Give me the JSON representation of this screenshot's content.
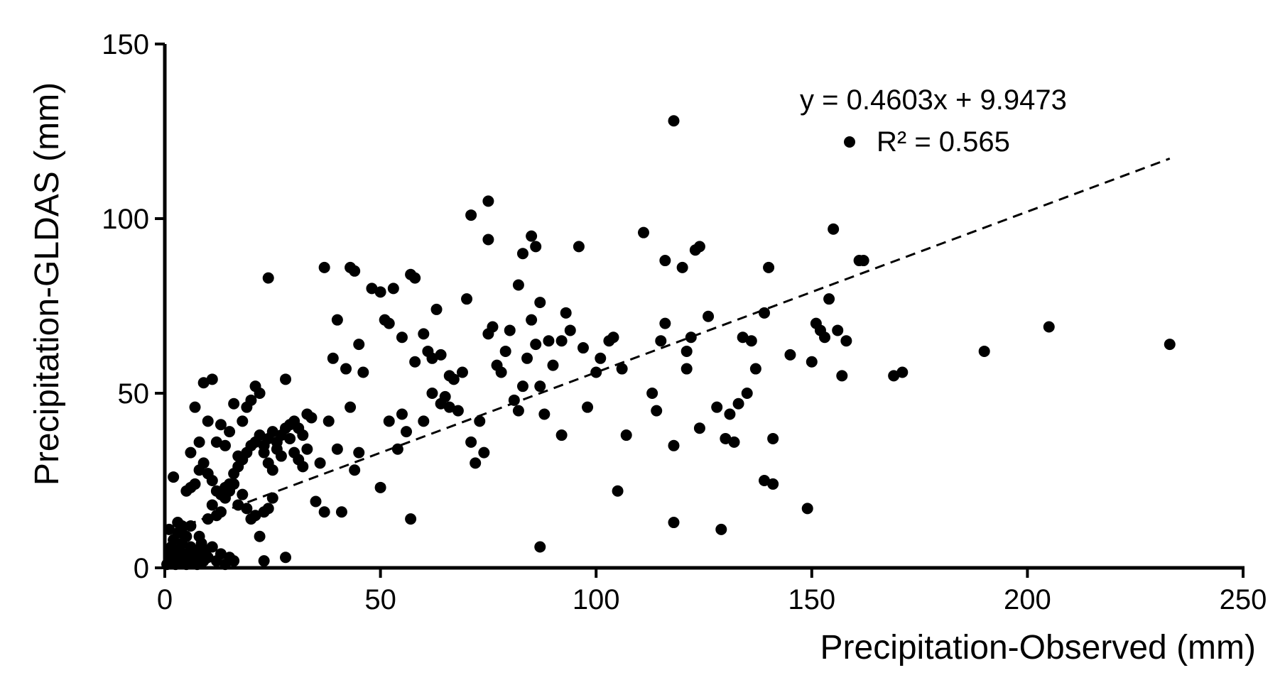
{
  "chart_data": {
    "type": "scatter",
    "xlabel": "Precipitation-Observed (mm)",
    "ylabel": "Precipitation-GLDAS (mm)",
    "xlim": [
      0,
      250
    ],
    "ylim": [
      0,
      150
    ],
    "x_ticks": [
      "0",
      "50",
      "100",
      "150",
      "200",
      "250"
    ],
    "y_ticks": [
      "0",
      "50",
      "100",
      "150"
    ],
    "grid": false,
    "legend": "none",
    "colors": {
      "points": "#000000",
      "axes": "#000000",
      "trendline": "#000000"
    },
    "trendline": {
      "slope": 0.4603,
      "intercept": 9.9473,
      "x_range": [
        5,
        233
      ],
      "style": "dashed",
      "equation": "y = 0.4603x + 9.9473",
      "r2_text": "R² = 0.565"
    },
    "points": [
      [
        0.5,
        1
      ],
      [
        1,
        2
      ],
      [
        1,
        4
      ],
      [
        1.5,
        6
      ],
      [
        2,
        3
      ],
      [
        2,
        8
      ],
      [
        2.5,
        1
      ],
      [
        3,
        5
      ],
      [
        3,
        10
      ],
      [
        3.5,
        2
      ],
      [
        4,
        7
      ],
      [
        4,
        12
      ],
      [
        4.5,
        4
      ],
      [
        5,
        1
      ],
      [
        5,
        9
      ],
      [
        5.5,
        3
      ],
      [
        6,
        6
      ],
      [
        6.5,
        2
      ],
      [
        7,
        5
      ],
      [
        7.5,
        1
      ],
      [
        8,
        4
      ],
      [
        8.5,
        7
      ],
      [
        9,
        2
      ],
      [
        9.5,
        5
      ],
      [
        10,
        3
      ],
      [
        11,
        6
      ],
      [
        12,
        2
      ],
      [
        13,
        4
      ],
      [
        14,
        1
      ],
      [
        15,
        3
      ],
      [
        16,
        2
      ],
      [
        2,
        26
      ],
      [
        1,
        11
      ],
      [
        3,
        13
      ],
      [
        4,
        10
      ],
      [
        6,
        12
      ],
      [
        8,
        9
      ],
      [
        10,
        14
      ],
      [
        12,
        15
      ],
      [
        13,
        16
      ],
      [
        11,
        18
      ],
      [
        14,
        20
      ],
      [
        15,
        22
      ],
      [
        16,
        24
      ],
      [
        17,
        18
      ],
      [
        18,
        21
      ],
      [
        19,
        17
      ],
      [
        20,
        14
      ],
      [
        21,
        15
      ],
      [
        22,
        9
      ],
      [
        23,
        16
      ],
      [
        24,
        17
      ],
      [
        25,
        20
      ],
      [
        5,
        22
      ],
      [
        6,
        23
      ],
      [
        7,
        24
      ],
      [
        8,
        28
      ],
      [
        9,
        30
      ],
      [
        10,
        27
      ],
      [
        11,
        25
      ],
      [
        12,
        22
      ],
      [
        13,
        21
      ],
      [
        14,
        23
      ],
      [
        15,
        24
      ],
      [
        16,
        27
      ],
      [
        17,
        29
      ],
      [
        18,
        31
      ],
      [
        19,
        33
      ],
      [
        20,
        35
      ],
      [
        21,
        36
      ],
      [
        22,
        38
      ],
      [
        23,
        35
      ],
      [
        24,
        37
      ],
      [
        25,
        39
      ],
      [
        26,
        36
      ],
      [
        27,
        38
      ],
      [
        28,
        40
      ],
      [
        29,
        41
      ],
      [
        30,
        42
      ],
      [
        31,
        40
      ],
      [
        32,
        38
      ],
      [
        33,
        44
      ],
      [
        34,
        43
      ],
      [
        6,
        33
      ],
      [
        7,
        46
      ],
      [
        8,
        36
      ],
      [
        9,
        53
      ],
      [
        10,
        42
      ],
      [
        11,
        54
      ],
      [
        12,
        36
      ],
      [
        13,
        41
      ],
      [
        14,
        35
      ],
      [
        15,
        39
      ],
      [
        16,
        47
      ],
      [
        17,
        32
      ],
      [
        18,
        42
      ],
      [
        19,
        46
      ],
      [
        20,
        48
      ],
      [
        21,
        52
      ],
      [
        22,
        50
      ],
      [
        23,
        33
      ],
      [
        24,
        30
      ],
      [
        25,
        28
      ],
      [
        26,
        34
      ],
      [
        27,
        32
      ],
      [
        28,
        54
      ],
      [
        29,
        37
      ],
      [
        30,
        33
      ],
      [
        31,
        31
      ],
      [
        32,
        29
      ],
      [
        33,
        34
      ],
      [
        35,
        19
      ],
      [
        36,
        30
      ],
      [
        37,
        16
      ],
      [
        38,
        42
      ],
      [
        39,
        60
      ],
      [
        40,
        34
      ],
      [
        41,
        16
      ],
      [
        42,
        57
      ],
      [
        43,
        46
      ],
      [
        44,
        28
      ],
      [
        45,
        33
      ],
      [
        46,
        56
      ],
      [
        24,
        83
      ],
      [
        28,
        3
      ],
      [
        23,
        2
      ],
      [
        37,
        86
      ],
      [
        40,
        71
      ],
      [
        43,
        86
      ],
      [
        44,
        85
      ],
      [
        45,
        64
      ],
      [
        48,
        80
      ],
      [
        50,
        79
      ],
      [
        51,
        71
      ],
      [
        52,
        70
      ],
      [
        53,
        80
      ],
      [
        55,
        66
      ],
      [
        57,
        84
      ],
      [
        58,
        83
      ],
      [
        60,
        67
      ],
      [
        62,
        60
      ],
      [
        63,
        74
      ],
      [
        64,
        61
      ],
      [
        65,
        49
      ],
      [
        66,
        55
      ],
      [
        50,
        23
      ],
      [
        52,
        42
      ],
      [
        54,
        34
      ],
      [
        55,
        44
      ],
      [
        56,
        39
      ],
      [
        57,
        14
      ],
      [
        58,
        59
      ],
      [
        60,
        42
      ],
      [
        61,
        62
      ],
      [
        62,
        50
      ],
      [
        64,
        47
      ],
      [
        66,
        46
      ],
      [
        67,
        54
      ],
      [
        68,
        45
      ],
      [
        69,
        56
      ],
      [
        70,
        77
      ],
      [
        71,
        36
      ],
      [
        72,
        30
      ],
      [
        73,
        42
      ],
      [
        74,
        33
      ],
      [
        75,
        67
      ],
      [
        76,
        69
      ],
      [
        77,
        58
      ],
      [
        78,
        56
      ],
      [
        79,
        62
      ],
      [
        80,
        68
      ],
      [
        81,
        48
      ],
      [
        82,
        45
      ],
      [
        83,
        52
      ],
      [
        84,
        60
      ],
      [
        85,
        71
      ],
      [
        86,
        64
      ],
      [
        87,
        52
      ],
      [
        88,
        44
      ],
      [
        89,
        65
      ],
      [
        90,
        58
      ],
      [
        71,
        101
      ],
      [
        75,
        94
      ],
      [
        75,
        105
      ],
      [
        83,
        90
      ],
      [
        85,
        95
      ],
      [
        86,
        92
      ],
      [
        82,
        81
      ],
      [
        87,
        76
      ],
      [
        92,
        65
      ],
      [
        93,
        73
      ],
      [
        94,
        68
      ],
      [
        96,
        92
      ],
      [
        97,
        63
      ],
      [
        98,
        46
      ],
      [
        100,
        56
      ],
      [
        101,
        60
      ],
      [
        103,
        65
      ],
      [
        104,
        66
      ],
      [
        106,
        57
      ],
      [
        107,
        38
      ],
      [
        105,
        22
      ],
      [
        87,
        6
      ],
      [
        92,
        38
      ],
      [
        111,
        96
      ],
      [
        113,
        50
      ],
      [
        114,
        45
      ],
      [
        115,
        65
      ],
      [
        116,
        70
      ],
      [
        116,
        88
      ],
      [
        118,
        128
      ],
      [
        118,
        13
      ],
      [
        118,
        35
      ],
      [
        120,
        86
      ],
      [
        121,
        57
      ],
      [
        121,
        62
      ],
      [
        122,
        66
      ],
      [
        123,
        91
      ],
      [
        124,
        92
      ],
      [
        124,
        40
      ],
      [
        126,
        72
      ],
      [
        128,
        46
      ],
      [
        129,
        11
      ],
      [
        130,
        37
      ],
      [
        131,
        44
      ],
      [
        132,
        36
      ],
      [
        133,
        47
      ],
      [
        134,
        66
      ],
      [
        135,
        50
      ],
      [
        136,
        65
      ],
      [
        137,
        57
      ],
      [
        139,
        73
      ],
      [
        140,
        86
      ],
      [
        139,
        25
      ],
      [
        141,
        24
      ],
      [
        141,
        37
      ],
      [
        145,
        61
      ],
      [
        149,
        17
      ],
      [
        150,
        59
      ],
      [
        151,
        70
      ],
      [
        152,
        68
      ],
      [
        153,
        66
      ],
      [
        154,
        77
      ],
      [
        155,
        97
      ],
      [
        156,
        68
      ],
      [
        157,
        55
      ],
      [
        158,
        65
      ],
      [
        161,
        88
      ],
      [
        162,
        88
      ],
      [
        169,
        55
      ],
      [
        171,
        56
      ],
      [
        190,
        62
      ],
      [
        205,
        69
      ],
      [
        233,
        64
      ]
    ]
  }
}
